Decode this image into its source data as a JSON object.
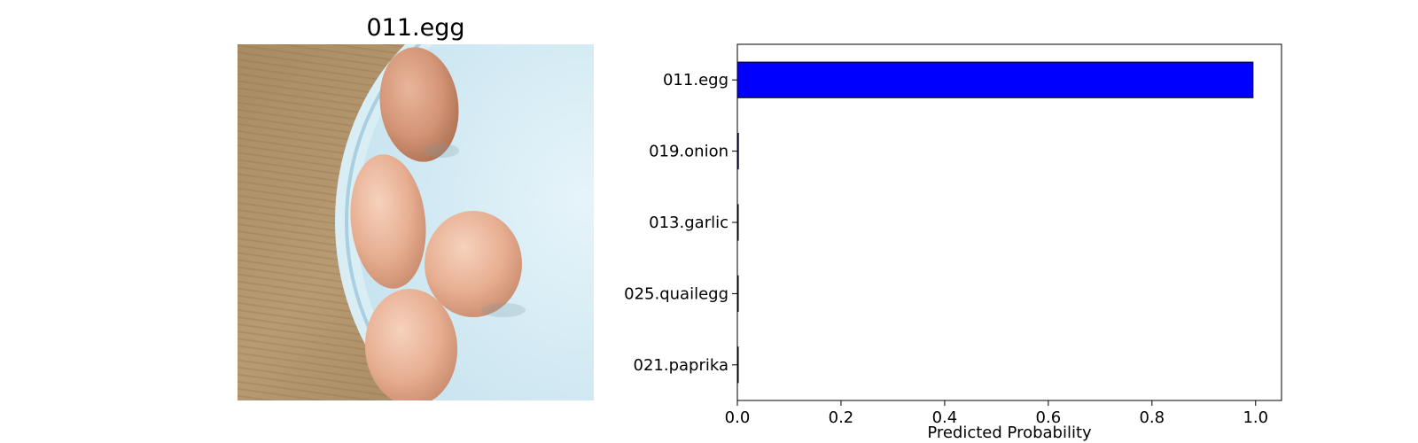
{
  "image_panel": {
    "title": "011.egg"
  },
  "chart_data": {
    "type": "bar",
    "orientation": "horizontal",
    "categories": [
      "011.egg",
      "019.onion",
      "013.garlic",
      "025.quailegg",
      "021.paprika"
    ],
    "values": [
      0.995,
      0.002,
      0.001,
      0.001,
      0.001
    ],
    "xlabel": "Predicted Probability",
    "ylabel": "",
    "xlim": [
      0,
      1.05
    ],
    "xticks": [
      "0.0",
      "0.2",
      "0.4",
      "0.6",
      "0.8",
      "1.0"
    ],
    "xtick_values": [
      0.0,
      0.2,
      0.4,
      0.6,
      0.8,
      1.0
    ],
    "bar_color": "#0000ff",
    "grid": false,
    "legend": "none"
  }
}
